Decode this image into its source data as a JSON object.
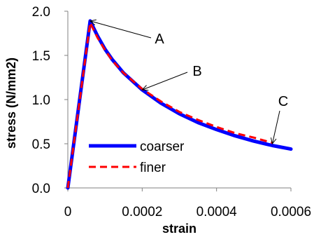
{
  "chart_data": {
    "type": "line",
    "xlabel": "strain",
    "ylabel": "stress (N/mm2)",
    "xlim": [
      0,
      0.0006
    ],
    "ylim": [
      0,
      2.0
    ],
    "x_ticks": [
      0,
      0.0002,
      0.0004,
      0.0006
    ],
    "x_tick_labels": [
      "0",
      "0.0002",
      "0.0004",
      "0.0006"
    ],
    "y_ticks": [
      0,
      0.5,
      1.0,
      1.5,
      2.0
    ],
    "y_tick_labels": [
      "0.0",
      "0.5",
      "1.0",
      "1.5",
      "2.0"
    ],
    "grid": false,
    "legend_position": "bottom-left",
    "series": [
      {
        "name": "coarser",
        "color": "#0000ff",
        "style": "solid",
        "x": [
          0,
          6e-05,
          8e-05,
          0.0001,
          0.00012,
          0.00015,
          0.0002,
          0.00025,
          0.0003,
          0.00035,
          0.0004,
          0.00045,
          0.0005,
          0.00055,
          0.0006
        ],
        "y": [
          0,
          1.89,
          1.72,
          1.57,
          1.45,
          1.3,
          1.11,
          0.96,
          0.84,
          0.74,
          0.66,
          0.59,
          0.53,
          0.48,
          0.44
        ]
      },
      {
        "name": "finer",
        "color": "#ff0000",
        "style": "dashed",
        "x": [
          0,
          6e-05,
          8e-05,
          0.0001,
          0.00012,
          0.00015,
          0.0002,
          0.00025,
          0.0003,
          0.00035,
          0.0004,
          0.00045,
          0.0005,
          0.00055
        ],
        "y": [
          0,
          1.87,
          1.7,
          1.56,
          1.44,
          1.3,
          1.12,
          0.98,
          0.86,
          0.77,
          0.69,
          0.62,
          0.57,
          0.51
        ]
      }
    ],
    "annotations": [
      {
        "label": "A",
        "x": 6e-05,
        "y": 1.89
      },
      {
        "label": "B",
        "x": 0.0002,
        "y": 1.11
      },
      {
        "label": "C",
        "x": 0.00055,
        "y": 0.5
      }
    ]
  }
}
